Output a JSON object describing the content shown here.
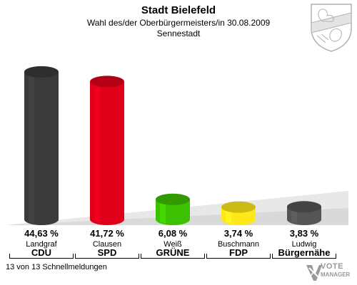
{
  "header": {
    "title": "Stadt Bielefeld",
    "subtitle": "Wahl des/der Oberbürgermeisters/in 30.08.2009",
    "district": "Sennestadt"
  },
  "footer": {
    "reporting_status": "13 von 13 Schnellmeldungen",
    "logo_line1": "VOTE",
    "logo_line2": "MANAGER"
  },
  "chart_data": {
    "type": "bar",
    "categories": [
      "Landgraf CDU",
      "Clausen SPD",
      "Weiß GRÜNE",
      "Buschmann FDP",
      "Ludwig Bürgernähe"
    ],
    "candidates": [
      "Landgraf",
      "Clausen",
      "Weiß",
      "Buschmann",
      "Ludwig"
    ],
    "parties": [
      "CDU",
      "SPD",
      "GRÜNE",
      "FDP",
      "Bürgernähe"
    ],
    "values": [
      44.63,
      41.72,
      6.08,
      3.74,
      3.83
    ],
    "value_labels": [
      "44,63 %",
      "41,72 %",
      "6,08 %",
      "3,74 %",
      "3,83 %"
    ],
    "colors": [
      "#3a3a3a",
      "#e0001a",
      "#3cc000",
      "#ffe81a",
      "#555555"
    ],
    "ylim": [
      0,
      50
    ]
  }
}
